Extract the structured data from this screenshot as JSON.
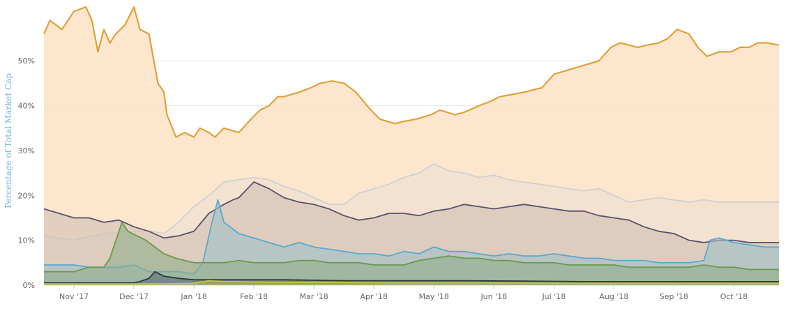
{
  "chart_data": {
    "type": "area",
    "title": "",
    "xlabel": "",
    "ylabel": "Percentage of Total Market Cap",
    "x_tick_labels": [
      "Nov '17",
      "Dec '17",
      "Jan '18",
      "Feb '18",
      "Mar '18",
      "Apr '18",
      "May '18",
      "Jun '18",
      "Jul '18",
      "Aug '18",
      "Sep '18",
      "Oct '18"
    ],
    "x_tick_positions": [
      0.5,
      1.5,
      2.5,
      3.5,
      4.5,
      5.5,
      6.5,
      7.5,
      8.5,
      9.5,
      10.5,
      11.5
    ],
    "y_tick_labels": [
      "0%",
      "10%",
      "20%",
      "30%",
      "40%",
      "50%"
    ],
    "y_tick_values": [
      0,
      10,
      20,
      30,
      40,
      50
    ],
    "xlim": [
      0,
      12.25
    ],
    "ylim": [
      0,
      62
    ],
    "grid": true,
    "series": [
      {
        "color": "#e1a03a",
        "fill": "#fbe3c6",
        "x": [
          0,
          0.1,
          0.3,
          0.5,
          0.7,
          0.8,
          0.9,
          1.0,
          1.1,
          1.2,
          1.35,
          1.5,
          1.6,
          1.75,
          1.9,
          2.0,
          2.05,
          2.2,
          2.35,
          2.5,
          2.6,
          2.75,
          2.85,
          3.0,
          3.25,
          3.45,
          3.6,
          3.75,
          3.9,
          4.0,
          4.25,
          4.45,
          4.6,
          4.8,
          5.0,
          5.2,
          5.45,
          5.6,
          5.85,
          6.0,
          6.2,
          6.45,
          6.6,
          6.85,
          7.0,
          7.25,
          7.45,
          7.6,
          7.8,
          8.0,
          8.3,
          8.5,
          8.75,
          9.0,
          9.25,
          9.45,
          9.6,
          9.75,
          9.9,
          10.05,
          10.25,
          10.4,
          10.55,
          10.75,
          10.9,
          11.05,
          11.25,
          11.45,
          11.6,
          11.75,
          11.9,
          12.05,
          12.25
        ],
        "values": [
          56,
          59,
          57,
          61,
          62,
          59,
          52,
          57,
          54,
          56,
          58,
          62,
          57,
          56,
          45,
          43,
          38,
          33,
          34,
          33,
          35,
          34,
          33,
          35,
          34,
          37,
          39,
          40,
          42,
          42,
          43,
          44,
          45,
          45.5,
          45,
          43,
          39,
          37,
          36,
          36.5,
          37,
          38,
          39,
          38,
          38.5,
          40,
          41,
          42,
          42.5,
          43,
          44,
          47,
          48,
          49,
          50,
          53,
          54,
          53.5,
          53,
          53.5,
          54,
          55,
          57,
          56,
          53,
          51,
          52,
          52,
          53,
          53,
          54,
          54,
          53.5
        ]
      },
      {
        "color": "#d0d0d0",
        "fill": "#ebdfd0",
        "x": [
          0,
          0.5,
          1.0,
          1.5,
          1.8,
          2.0,
          2.2,
          2.5,
          2.75,
          3.0,
          3.25,
          3.5,
          3.75,
          4.0,
          4.25,
          4.5,
          4.75,
          5.0,
          5.25,
          5.5,
          5.75,
          6.0,
          6.25,
          6.5,
          6.75,
          7.0,
          7.25,
          7.5,
          7.75,
          8.0,
          8.25,
          8.5,
          8.75,
          9.0,
          9.25,
          9.5,
          9.75,
          10.0,
          10.25,
          10.5,
          10.75,
          11.0,
          11.25,
          11.5,
          11.75,
          12.0,
          12.25
        ],
        "values": [
          11,
          10,
          11.5,
          12,
          12,
          11.5,
          13.5,
          17.5,
          20,
          23,
          23.5,
          24,
          23.5,
          22,
          21,
          19.5,
          18,
          18,
          20.5,
          21.5,
          22.5,
          24,
          25,
          27,
          25.5,
          25,
          24,
          24.5,
          23.5,
          23,
          22.5,
          22,
          21.5,
          21,
          21.5,
          20,
          18.5,
          19,
          19.5,
          19,
          18.5,
          19,
          18.5,
          18.5,
          18.5,
          18.5,
          18.5
        ]
      },
      {
        "color": "#58536b",
        "fill": "#d1bfb3",
        "x": [
          0,
          0.25,
          0.5,
          0.75,
          1.0,
          1.25,
          1.5,
          1.75,
          2.0,
          2.25,
          2.5,
          2.75,
          3.0,
          3.15,
          3.25,
          3.5,
          3.75,
          4.0,
          4.25,
          4.5,
          4.75,
          5.0,
          5.25,
          5.5,
          5.75,
          6.0,
          6.25,
          6.5,
          6.75,
          7.0,
          7.25,
          7.5,
          7.75,
          8.0,
          8.25,
          8.5,
          8.75,
          9.0,
          9.25,
          9.5,
          9.75,
          10.0,
          10.25,
          10.5,
          10.75,
          11.0,
          11.25,
          11.5,
          11.75,
          12.0,
          12.25
        ],
        "values": [
          17,
          16,
          15,
          15,
          14,
          14.5,
          13,
          12,
          10.5,
          11,
          12,
          16,
          18,
          19,
          19.5,
          23,
          21.5,
          19.5,
          18.5,
          18,
          17,
          15.5,
          14.5,
          15,
          16,
          16,
          15.5,
          16.5,
          17,
          18,
          17.5,
          17,
          17.5,
          18,
          17.5,
          17,
          16.5,
          16.5,
          15.5,
          15,
          14.5,
          13,
          12,
          11.5,
          10,
          9.5,
          10,
          10,
          9.5,
          9.5,
          9.5
        ]
      },
      {
        "color": "#5aa9cf",
        "fill": "#9fbfca",
        "x": [
          0,
          0.25,
          0.5,
          0.75,
          1.0,
          1.25,
          1.5,
          1.75,
          2.0,
          2.25,
          2.5,
          2.65,
          2.8,
          2.9,
          3.0,
          3.25,
          3.5,
          3.75,
          4.0,
          4.25,
          4.5,
          4.75,
          5.0,
          5.25,
          5.5,
          5.75,
          6.0,
          6.25,
          6.5,
          6.75,
          7.0,
          7.25,
          7.5,
          7.75,
          8.0,
          8.25,
          8.5,
          8.75,
          9.0,
          9.25,
          9.5,
          9.75,
          10.0,
          10.25,
          10.5,
          10.75,
          11.0,
          11.1,
          11.25,
          11.5,
          11.75,
          12.0,
          12.25
        ],
        "values": [
          4.5,
          4.5,
          4.5,
          4,
          4,
          4,
          4.5,
          3,
          3,
          3,
          2.5,
          5,
          14,
          19,
          14,
          11.5,
          10.5,
          9.5,
          8.5,
          9.5,
          8.5,
          8,
          7.5,
          7,
          7,
          6.5,
          7.5,
          7,
          8.5,
          7.5,
          7.5,
          7,
          6.5,
          7,
          6.5,
          6.5,
          7,
          6.5,
          6,
          6,
          5.5,
          5.5,
          5.5,
          5,
          5,
          5,
          5.5,
          10,
          10.5,
          9.5,
          9,
          8.5,
          8.5
        ]
      },
      {
        "color": "#6b9a4e",
        "fill": "#8fae88",
        "x": [
          0,
          0.25,
          0.5,
          0.75,
          1.0,
          1.1,
          1.2,
          1.3,
          1.4,
          1.55,
          1.7,
          1.9,
          2.0,
          2.2,
          2.35,
          2.5,
          2.75,
          3.0,
          3.25,
          3.5,
          3.75,
          4.0,
          4.25,
          4.5,
          4.75,
          5.0,
          5.25,
          5.5,
          5.75,
          6.0,
          6.25,
          6.5,
          6.75,
          7.0,
          7.25,
          7.5,
          7.75,
          8.0,
          8.25,
          8.5,
          8.75,
          9.0,
          9.25,
          9.5,
          9.75,
          10.0,
          10.25,
          10.5,
          10.75,
          11.0,
          11.25,
          11.5,
          11.75,
          12.0,
          12.25
        ],
        "values": [
          3,
          3,
          3,
          4,
          4,
          6,
          10,
          14,
          12,
          11,
          10,
          8,
          7,
          6,
          5.5,
          5,
          5,
          5,
          5.5,
          5,
          5,
          5,
          5.5,
          5.5,
          5,
          5,
          5,
          4.5,
          4.5,
          4.5,
          5.5,
          6,
          6.5,
          6,
          6,
          5.5,
          5.5,
          5,
          5,
          5,
          4.5,
          4.5,
          4.5,
          4.5,
          4,
          4,
          4,
          4,
          4,
          4.5,
          4,
          4,
          3.5,
          3.5,
          3.5
        ]
      },
      {
        "color": "#2a3a44",
        "fill": "#5b6e73",
        "x": [
          0,
          0.5,
          1.0,
          1.3,
          1.5,
          1.6,
          1.75,
          1.85,
          2.0,
          2.25,
          2.5,
          3.0,
          4.0,
          5.0,
          6.0,
          7.0,
          8.0,
          9.0,
          10.0,
          11.0,
          12.25
        ],
        "values": [
          0.5,
          0.5,
          0.5,
          0.5,
          0.5,
          0.8,
          1.5,
          3,
          2,
          1.5,
          1.2,
          1.2,
          1.2,
          1,
          1,
          1,
          0.9,
          0.8,
          0.8,
          0.8,
          0.8
        ]
      },
      {
        "color": "#c8c832",
        "fill": "#b3b041",
        "x": [
          0,
          1.0,
          2.0,
          2.5,
          2.75,
          3.0,
          4.0,
          5.0,
          6.0,
          7.0,
          8.0,
          9.0,
          10.0,
          11.0,
          12.25
        ],
        "values": [
          0.3,
          0.3,
          0.3,
          0.4,
          1,
          0.8,
          0.6,
          0.6,
          0.5,
          0.5,
          0.5,
          0.4,
          0.4,
          0.4,
          0.4
        ]
      }
    ]
  }
}
